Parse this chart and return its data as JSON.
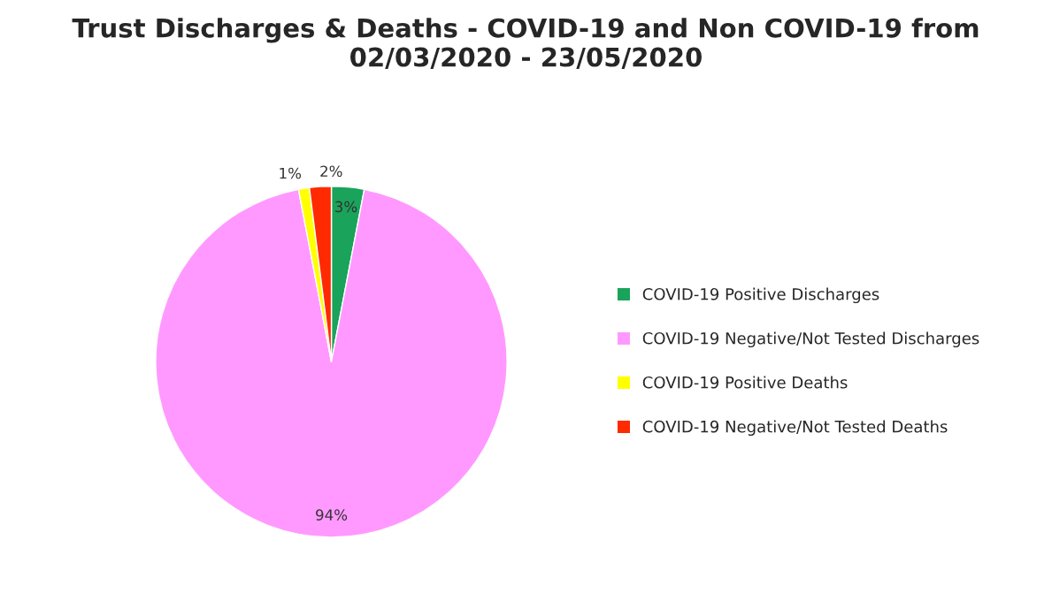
{
  "chart_data": {
    "type": "pie",
    "title": "Trust Discharges & Deaths - COVID-19 and Non COVID-19 from 02/03/2020 - 23/05/2020",
    "categories": [
      "COVID-19 Positive Discharges",
      "COVID-19 Negative/Not Tested Discharges",
      "COVID-19 Positive Deaths",
      "COVID-19 Negative/Not Tested Deaths"
    ],
    "values": [
      3,
      94,
      1,
      2
    ],
    "colors": [
      "#1aa35a",
      "#ff99ff",
      "#ffff00",
      "#ff2a00"
    ],
    "value_labels": [
      "3%",
      "94%",
      "1%",
      "2%"
    ],
    "legend": "right"
  }
}
